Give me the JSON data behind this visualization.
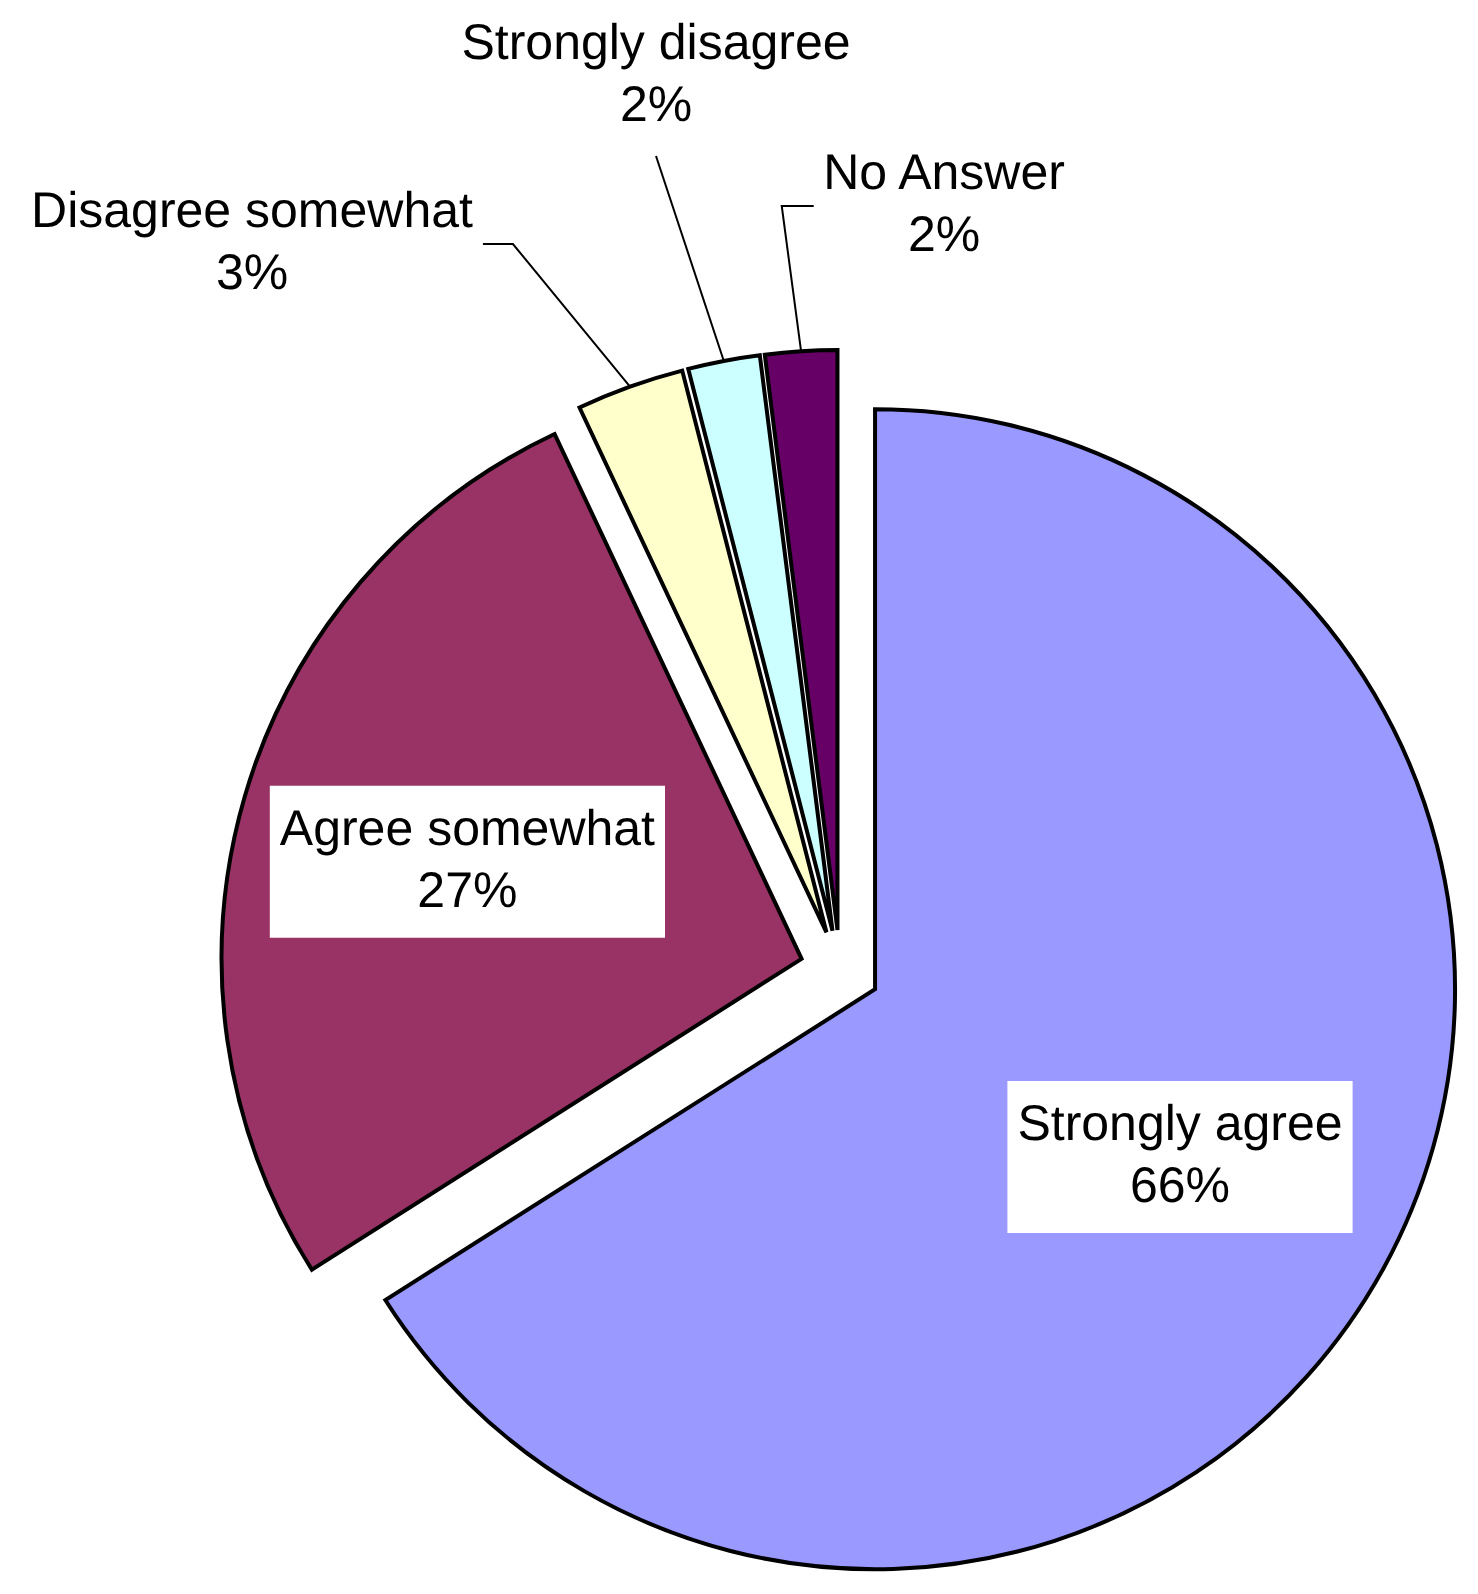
{
  "chart_data": {
    "type": "pie",
    "categories": [
      "Strongly agree",
      "Agree somewhat",
      "Disagree somewhat",
      "Strongly disagree",
      "No Answer"
    ],
    "values": [
      66,
      27,
      3,
      2,
      2
    ],
    "colors": [
      "#9999ff",
      "#993366",
      "#ffffcc",
      "#ccffff",
      "#660066"
    ],
    "value_labels": [
      "66%",
      "27%",
      "3%",
      "2%",
      "2%"
    ]
  }
}
